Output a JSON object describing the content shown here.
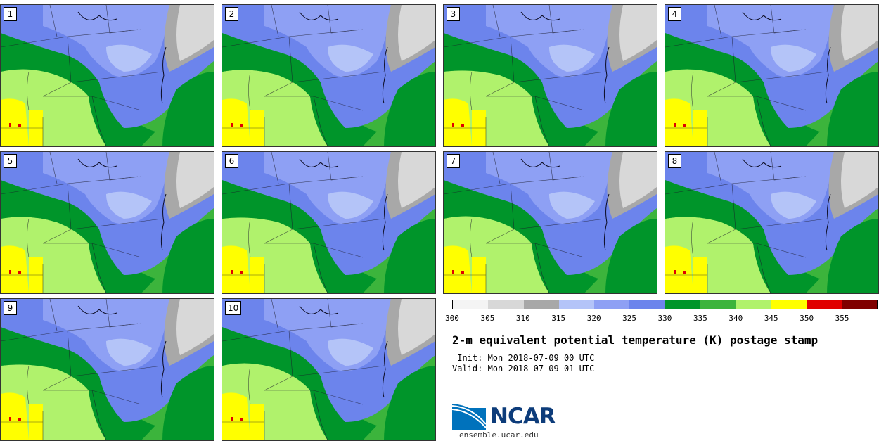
{
  "title": "2-m equivalent potential temperature (K) postage stamp",
  "init_label": " Init: Mon 2018-07-09 00 UTC",
  "valid_label": "Valid: Mon 2018-07-09 01 UTC",
  "website": "ensemble.ucar.edu",
  "logo_text": "NCAR",
  "panels": [
    {
      "member": "1"
    },
    {
      "member": "2"
    },
    {
      "member": "3"
    },
    {
      "member": "4"
    },
    {
      "member": "5"
    },
    {
      "member": "6"
    },
    {
      "member": "7"
    },
    {
      "member": "8"
    },
    {
      "member": "9"
    },
    {
      "member": "10"
    }
  ],
  "colorbar": {
    "tick_labels": [
      "300",
      "305",
      "310",
      "315",
      "320",
      "325",
      "330",
      "335",
      "340",
      "345",
      "350",
      "355"
    ],
    "colors": [
      "#f4f4f4",
      "#d8d8d8",
      "#a8a8a8",
      "#b4c4f8",
      "#8ea0f4",
      "#6c84ec",
      "#00952a",
      "#3cb43c",
      "#b0f26c",
      "#ffff00",
      "#e00000",
      "#800000"
    ]
  },
  "map_colors": {
    "gray_light": "#d8d8d8",
    "gray_mid": "#a8a8a8",
    "blue_light": "#b4c4f8",
    "blue_mid": "#8ea0f4",
    "blue_dark": "#6c84ec",
    "green_dark": "#00952a",
    "green_mid": "#3cb43c",
    "green_light": "#b0f26c",
    "yellow": "#ffff00",
    "red": "#e00000"
  }
}
